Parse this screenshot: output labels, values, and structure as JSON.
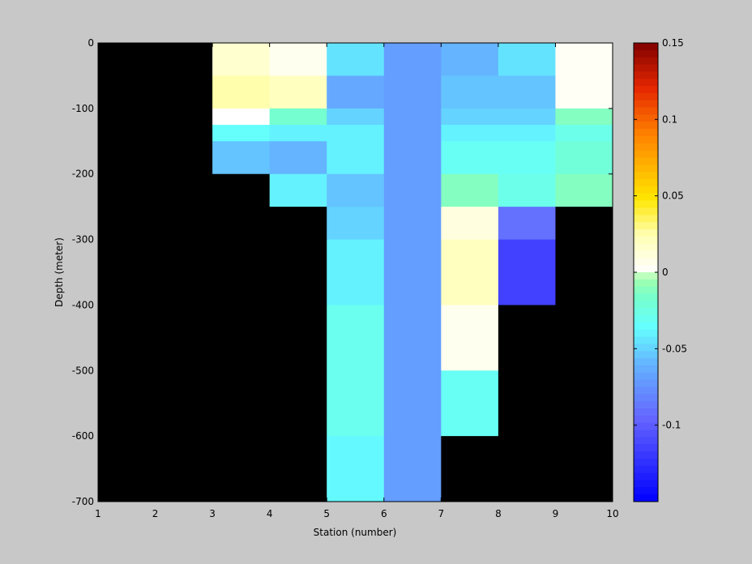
{
  "chart_data": {
    "type": "heatmap",
    "xlabel": "Station (number)",
    "ylabel": "Depth (meter)",
    "xlim": [
      1,
      10
    ],
    "ylim": [
      -700,
      0
    ],
    "xticks": [
      "1",
      "2",
      "3",
      "4",
      "5",
      "6",
      "7",
      "8",
      "9",
      "10"
    ],
    "yticks": [
      "0",
      "-100",
      "-200",
      "-300",
      "-400",
      "-500",
      "-600",
      "-700"
    ],
    "depth_edges": [
      0,
      -10,
      -50,
      -100,
      -125,
      -150,
      -200,
      -250,
      -300,
      -400,
      -500,
      -600,
      -700
    ],
    "station_edges": [
      1,
      2,
      3,
      4,
      5,
      6,
      7,
      8,
      9,
      10
    ],
    "missing_color": "#000000",
    "color_range": [
      -0.15,
      0.15
    ],
    "colorbar_ticks": [
      "0.15",
      "0.1",
      "0.05",
      "0",
      "-0.05",
      "-0.1"
    ],
    "colorbar_tick_values": [
      0.15,
      0.1,
      0.05,
      0,
      -0.05,
      -0.1
    ],
    "values": [
      [
        null,
        null,
        0.015,
        0.005,
        -0.045,
        -0.07,
        -0.06,
        -0.045,
        0.003
      ],
      [
        null,
        null,
        0.015,
        0.005,
        -0.045,
        -0.07,
        -0.06,
        -0.045,
        0.003
      ],
      [
        null,
        null,
        0.025,
        0.02,
        -0.065,
        -0.07,
        -0.055,
        -0.055,
        0.003
      ],
      [
        null,
        null,
        0.0,
        -0.018,
        -0.05,
        -0.07,
        -0.05,
        -0.05,
        -0.012
      ],
      [
        null,
        null,
        -0.035,
        -0.04,
        -0.04,
        -0.07,
        -0.04,
        -0.04,
        -0.028
      ],
      [
        null,
        null,
        -0.055,
        -0.06,
        -0.04,
        -0.07,
        -0.032,
        -0.032,
        -0.022
      ],
      [
        null,
        null,
        null,
        -0.04,
        -0.055,
        -0.07,
        -0.012,
        -0.028,
        -0.012
      ],
      [
        null,
        null,
        null,
        null,
        -0.05,
        -0.07,
        0.01,
        -0.09,
        null
      ],
      [
        null,
        null,
        null,
        null,
        -0.04,
        -0.07,
        0.02,
        -0.115,
        null
      ],
      [
        null,
        null,
        null,
        null,
        -0.03,
        -0.07,
        0.005,
        null,
        null
      ],
      [
        null,
        null,
        null,
        null,
        -0.03,
        -0.07,
        -0.032,
        null,
        null
      ],
      [
        null,
        null,
        null,
        null,
        -0.038,
        -0.07,
        null,
        null,
        null
      ]
    ]
  }
}
